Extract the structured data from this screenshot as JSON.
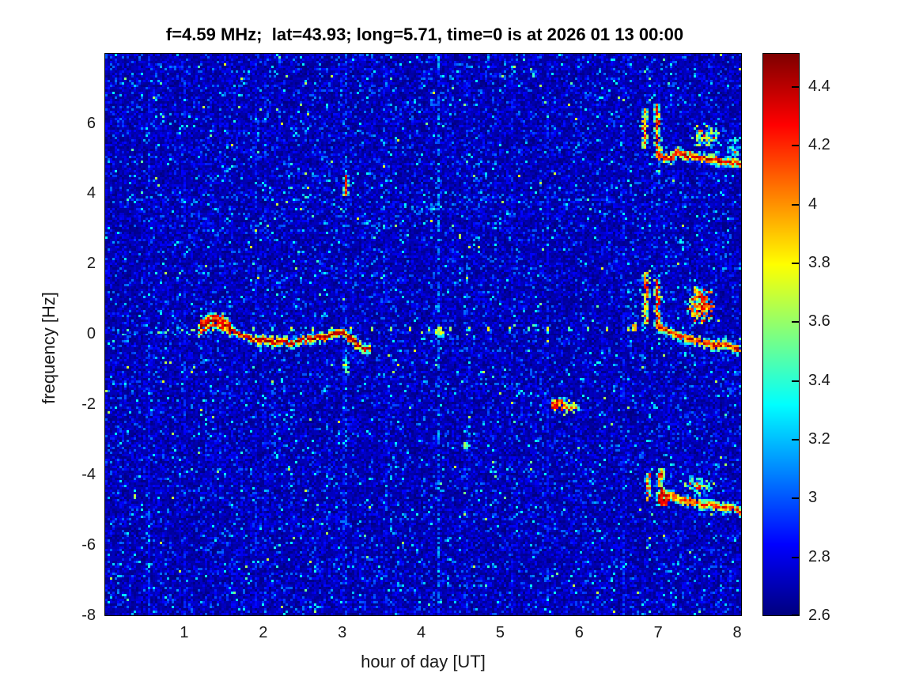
{
  "chart_data": {
    "type": "heatmap",
    "subtype": "doppler-spectrogram",
    "title": "f=4.59 MHz;  lat=43.93; long=5.71, time=0 is at 2026 01 13 00:00",
    "xlabel": "hour of day [UT]",
    "ylabel": "frequency [Hz]",
    "xlim": [
      0,
      8.05
    ],
    "ylim": [
      -8,
      7.97
    ],
    "x_ticks": [
      1,
      2,
      3,
      4,
      5,
      6,
      7,
      8
    ],
    "y_ticks": [
      6,
      4,
      2,
      0,
      -2,
      -4,
      -6,
      -8
    ],
    "grid": false,
    "legend": "colorbar-right",
    "colormap": "jet",
    "color_range": [
      2.6,
      4.51
    ],
    "colorbar_ticks": [
      4.4,
      4.2,
      4,
      3.8,
      3.6,
      3.4,
      3.2,
      3,
      2.8,
      2.6
    ],
    "noise": {
      "seed": 42,
      "base": 2.6
    },
    "features": [
      {
        "type": "colboost",
        "hours": [
          0.55,
          1.0,
          1.9,
          2.0,
          3.0,
          3.55,
          5.15,
          5.6,
          6.55
        ]
      },
      {
        "type": "vstripe",
        "x": 3.03,
        "density": 0.38,
        "vmin": 2.8,
        "vmax": 3.15
      },
      {
        "type": "vstripe",
        "x": 4.22,
        "density": 0.5,
        "vmin": 2.85,
        "vmax": 3.25
      },
      {
        "type": "vstripe",
        "x": 4.56,
        "density": 0.3,
        "vmin": 2.8,
        "vmax": 3.05
      },
      {
        "type": "band",
        "points": [
          [
            0.05,
            3.9
          ],
          [
            1,
            3.93
          ],
          [
            2,
            3.95
          ],
          [
            2.75,
            3.88
          ],
          [
            3,
            3.65
          ],
          [
            3.25,
            3.25
          ],
          [
            3.45,
            3.0
          ],
          [
            3.7,
            3.3
          ],
          [
            4,
            3.6
          ],
          [
            4.35,
            3.82
          ],
          [
            5,
            3.9
          ],
          [
            6,
            3.92
          ],
          [
            7,
            3.88
          ],
          [
            8.05,
            3.85
          ]
        ],
        "density": 0.5,
        "spread": 0.14,
        "vmin": 2.85,
        "vmax": 3.2
      },
      {
        "type": "fuzz_row",
        "y": 0.15,
        "x1": 0.05,
        "x2": 1.25,
        "spread": 0.16,
        "density": 0.55,
        "vmin": 2.95,
        "vmax": 3.6
      },
      {
        "type": "dash_row",
        "y": 0.12,
        "x1": 1.35,
        "x2": 6.62,
        "step": 0.25,
        "vmin": 3.35,
        "vmax": 3.9
      },
      {
        "type": "trace",
        "name": "main-doppler-trace",
        "points": [
          [
            1.18,
            0.2
          ],
          [
            1.25,
            0.32
          ],
          [
            1.35,
            0.42
          ],
          [
            1.45,
            0.38
          ],
          [
            1.55,
            0.22
          ],
          [
            1.68,
            0.02
          ],
          [
            1.85,
            -0.12
          ],
          [
            2.1,
            -0.2
          ],
          [
            2.35,
            -0.22
          ],
          [
            2.6,
            -0.12
          ],
          [
            2.78,
            -0.05
          ],
          [
            2.92,
            0.08
          ],
          [
            3.02,
            0.02
          ],
          [
            3.12,
            -0.15
          ],
          [
            3.25,
            -0.42
          ],
          [
            3.35,
            -0.38
          ]
        ],
        "core": [
          4.25,
          4.51
        ],
        "blob_until": 1.58
      },
      {
        "type": "vline",
        "x": 3.03,
        "y1": 4.55,
        "y2": 4.0,
        "core": [
          3.9,
          4.5
        ]
      },
      {
        "type": "vline",
        "x": 3.03,
        "y1": -0.75,
        "y2": -1.05,
        "core": [
          3.2,
          3.9
        ]
      },
      {
        "type": "blob",
        "cx": 4.22,
        "cy": 0.12,
        "rx": 0.05,
        "ry": 0.16,
        "v": [
          3.45,
          3.85
        ]
      },
      {
        "type": "blob",
        "cx": 4.56,
        "cy": -3.15,
        "rx": 0.04,
        "ry": 0.12,
        "v": [
          3.35,
          3.7
        ]
      },
      {
        "type": "blob",
        "cx": 5.72,
        "cy": -2.0,
        "rx": 0.09,
        "ry": 0.18,
        "v": [
          3.8,
          4.45
        ]
      },
      {
        "type": "cloud",
        "cx": 5.9,
        "cy": -2.05,
        "rx": 0.14,
        "ry": 0.22,
        "n": 45,
        "vmin": 2.95,
        "vmax": 3.8,
        "hot": 0.08
      },
      {
        "type": "blob",
        "cx": 6.68,
        "cy": 0.22,
        "rx": 0.04,
        "ry": 0.1,
        "v": [
          3.6,
          4.1
        ]
      },
      {
        "type": "vline",
        "x": 6.81,
        "y1": 6.45,
        "y2": 5.35,
        "core": [
          3.5,
          4.35
        ]
      },
      {
        "type": "vline",
        "x": 6.98,
        "y1": 6.55,
        "y2": 5.15,
        "core": [
          3.7,
          4.5
        ]
      },
      {
        "type": "trace",
        "name": "sunrise-trace-upper",
        "points": [
          [
            6.98,
            5.15
          ],
          [
            7.07,
            5.0
          ],
          [
            7.15,
            5.05
          ],
          [
            7.22,
            5.2
          ],
          [
            7.3,
            5.12
          ],
          [
            7.45,
            5.08
          ],
          [
            7.6,
            5.02
          ],
          [
            7.75,
            4.98
          ],
          [
            7.9,
            4.92
          ],
          [
            8.05,
            4.85
          ]
        ],
        "core": [
          4.0,
          4.51
        ]
      },
      {
        "type": "cloud",
        "cx": 7.6,
        "cy": 5.65,
        "rx": 0.22,
        "ry": 0.45,
        "n": 130,
        "vmin": 2.9,
        "vmax": 3.8,
        "hot": 0.06
      },
      {
        "type": "cloud",
        "cx": 7.95,
        "cy": 5.3,
        "rx": 0.12,
        "ry": 0.6,
        "n": 45,
        "vmin": 2.9,
        "vmax": 3.5,
        "hot": 0.03
      },
      {
        "type": "vline",
        "x": 6.83,
        "y1": 1.75,
        "y2": 0.35,
        "core": [
          3.5,
          4.35
        ]
      },
      {
        "type": "vline",
        "x": 6.98,
        "y1": 1.55,
        "y2": 0.25,
        "core": [
          3.7,
          4.5
        ]
      },
      {
        "type": "trace",
        "name": "sunrise-trace-middle",
        "points": [
          [
            6.98,
            0.3
          ],
          [
            7.1,
            0.12
          ],
          [
            7.25,
            -0.02
          ],
          [
            7.4,
            -0.12
          ],
          [
            7.55,
            -0.22
          ],
          [
            7.7,
            -0.3
          ],
          [
            7.85,
            -0.28
          ],
          [
            7.95,
            -0.38
          ],
          [
            8.05,
            -0.42
          ]
        ],
        "core": [
          3.85,
          4.45
        ]
      },
      {
        "type": "cloud",
        "cx": 7.52,
        "cy": 0.9,
        "rx": 0.2,
        "ry": 0.62,
        "n": 230,
        "vmin": 3.0,
        "vmax": 4.2,
        "hot": 0.22
      },
      {
        "type": "vline",
        "x": 6.86,
        "y1": -3.95,
        "y2": -4.7,
        "core": [
          3.5,
          4.35
        ]
      },
      {
        "type": "vline",
        "x": 7.02,
        "y1": -3.82,
        "y2": -4.85,
        "core": [
          3.7,
          4.5
        ]
      },
      {
        "type": "blob",
        "cx": 7.05,
        "cy": -4.68,
        "rx": 0.07,
        "ry": 0.22,
        "v": [
          4.1,
          4.51
        ]
      },
      {
        "type": "trace",
        "name": "sunrise-trace-lower",
        "points": [
          [
            7.05,
            -4.55
          ],
          [
            7.18,
            -4.6
          ],
          [
            7.3,
            -4.68
          ],
          [
            7.45,
            -4.78
          ],
          [
            7.6,
            -4.85
          ],
          [
            7.75,
            -4.88
          ],
          [
            7.9,
            -4.95
          ],
          [
            8.05,
            -5.0
          ]
        ],
        "core": [
          3.8,
          4.4
        ]
      },
      {
        "type": "cloud",
        "cx": 7.5,
        "cy": -4.28,
        "rx": 0.24,
        "ry": 0.33,
        "n": 80,
        "vmin": 2.9,
        "vmax": 3.7,
        "hot": 0.05
      }
    ]
  }
}
